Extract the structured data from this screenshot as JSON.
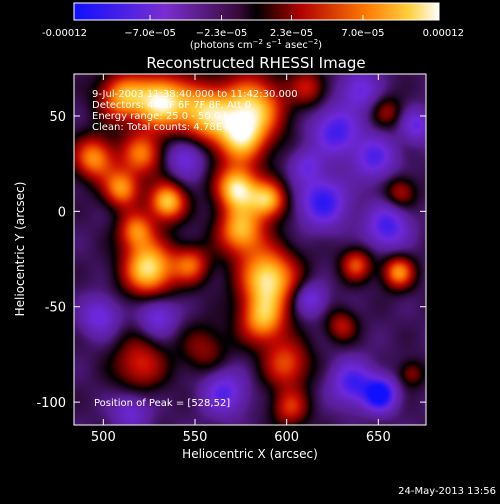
{
  "chart_data": {
    "type": "heatmap",
    "title": "Reconstructed RHESSI Image",
    "xlabel": "Heliocentric X (arcsec)",
    "ylabel": "Heliocentric Y (arcsec)",
    "xlim": [
      484,
      676
    ],
    "ylim": [
      -112,
      72
    ],
    "x_ticks": [
      500,
      550,
      600,
      650
    ],
    "y_ticks": [
      50,
      0,
      -50,
      -100
    ],
    "colorbar": {
      "min": -0.00012,
      "max": 0.00012,
      "tick_values": [
        -0.00012,
        -7e-05,
        -2.3e-05,
        2.3e-05,
        7e-05,
        0.00012
      ],
      "tick_labels": [
        "-0.00012",
        "−7.0e−05",
        "−2.3e−05",
        "2.3e−05",
        "7.0e−05",
        "0.00012"
      ],
      "unit_base": "(photons cm",
      "unit_exp1": "−2",
      "unit_mid": " s",
      "unit_exp2": "−1",
      "unit_mid2": " asec",
      "unit_exp3": "−2",
      "unit_end": ")"
    },
    "annotations": [
      "9-Jul-2003 11:38:40.000 to 11:42:30.000",
      "Detectors: 4F 5F 6F 7F 8F, Att 0",
      "Energy range: 25.0 - 50.0 keV",
      "Clean: Total counts: 4.78E+03"
    ],
    "peak_label": "Position of Peak = [528,52]",
    "peak_position": [
      528,
      52
    ],
    "colormap": "red-temperature with blue-purple negatives",
    "blobs": [
      {
        "x": 531,
        "y": 58,
        "v": 0.00012,
        "s": 10
      },
      {
        "x": 510,
        "y": 60,
        "v": 9e-05,
        "s": 9
      },
      {
        "x": 555,
        "y": 52,
        "v": 0.0001,
        "s": 11
      },
      {
        "x": 582,
        "y": 55,
        "v": 0.0001,
        "s": 12
      },
      {
        "x": 575,
        "y": 38,
        "v": 9e-05,
        "s": 10
      },
      {
        "x": 495,
        "y": 28,
        "v": 9e-05,
        "s": 8
      },
      {
        "x": 521,
        "y": 30,
        "v": 8e-05,
        "s": 8
      },
      {
        "x": 510,
        "y": 12,
        "v": 9e-05,
        "s": 7
      },
      {
        "x": 535,
        "y": 5,
        "v": 0.00011,
        "s": 7
      },
      {
        "x": 573,
        "y": 12,
        "v": 0.00012,
        "s": 8
      },
      {
        "x": 590,
        "y": 6,
        "v": 0.0001,
        "s": 7
      },
      {
        "x": 518,
        "y": -10,
        "v": 8e-05,
        "s": 7
      },
      {
        "x": 525,
        "y": -30,
        "v": 0.00012,
        "s": 10
      },
      {
        "x": 548,
        "y": -28,
        "v": 7e-05,
        "s": 7
      },
      {
        "x": 575,
        "y": -10,
        "v": 0.0001,
        "s": 9
      },
      {
        "x": 590,
        "y": -35,
        "v": 0.00012,
        "s": 11
      },
      {
        "x": 587,
        "y": -57,
        "v": 9e-05,
        "s": 9
      },
      {
        "x": 600,
        "y": -80,
        "v": 7e-05,
        "s": 9
      },
      {
        "x": 520,
        "y": -80,
        "v": 6e-05,
        "s": 10
      },
      {
        "x": 555,
        "y": -72,
        "v": 4e-05,
        "s": 9
      },
      {
        "x": 612,
        "y": 65,
        "v": 5e-05,
        "s": 7
      },
      {
        "x": 602,
        "y": -103,
        "v": 6e-05,
        "s": 7
      },
      {
        "x": 638,
        "y": -28,
        "v": 7e-05,
        "s": 6
      },
      {
        "x": 661,
        "y": -32,
        "v": 9e-05,
        "s": 6
      },
      {
        "x": 662,
        "y": 10,
        "v": 5e-05,
        "s": 6
      },
      {
        "x": 655,
        "y": 52,
        "v": 4e-05,
        "s": 6
      },
      {
        "x": 630,
        "y": -60,
        "v": 5e-05,
        "s": 6
      },
      {
        "x": 668,
        "y": -85,
        "v": 4e-05,
        "s": 5
      },
      {
        "x": 620,
        "y": 5,
        "v": -9e-05,
        "s": 9
      },
      {
        "x": 627,
        "y": 42,
        "v": -8e-05,
        "s": 9
      },
      {
        "x": 648,
        "y": 28,
        "v": -7e-05,
        "s": 8
      },
      {
        "x": 655,
        "y": -8,
        "v": -8e-05,
        "s": 8
      },
      {
        "x": 636,
        "y": -90,
        "v": -8e-05,
        "s": 8
      },
      {
        "x": 651,
        "y": -96,
        "v": -0.00012,
        "s": 6
      },
      {
        "x": 611,
        "y": 24,
        "v": -5e-05,
        "s": 6
      },
      {
        "x": 498,
        "y": -55,
        "v": -6e-05,
        "s": 7
      },
      {
        "x": 545,
        "y": 28,
        "v": -6e-05,
        "s": 7
      },
      {
        "x": 530,
        "y": -55,
        "v": -6e-05,
        "s": 7
      },
      {
        "x": 566,
        "y": -95,
        "v": -7e-05,
        "s": 8
      },
      {
        "x": 515,
        "y": -105,
        "v": -5e-05,
        "s": 7
      },
      {
        "x": 671,
        "y": 45,
        "v": -6e-05,
        "s": 6
      },
      {
        "x": 640,
        "y": 64,
        "v": -6e-05,
        "s": 7
      },
      {
        "x": 613,
        "y": -46,
        "v": -6e-05,
        "s": 6
      }
    ]
  },
  "footer": {
    "timestamp": "24-May-2013 13:56"
  }
}
